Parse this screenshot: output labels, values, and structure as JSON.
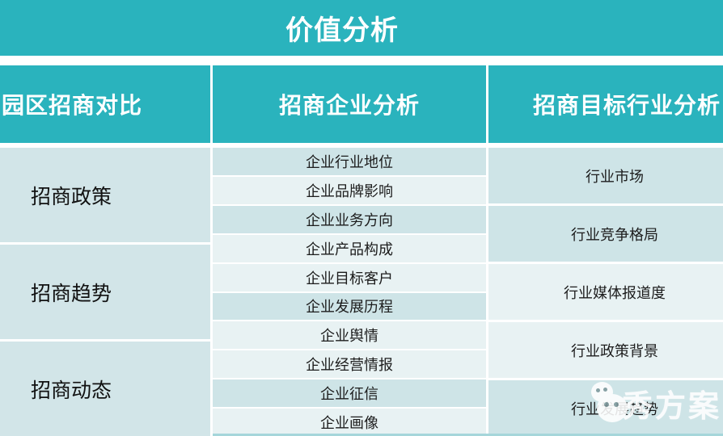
{
  "title": "价值分析",
  "colors": {
    "teal": "#2ab3bd",
    "tint_dark": "#cee4e7",
    "tint_light": "#e8f2f3",
    "tint_left": "#d2e5e8",
    "header_text": "#ffffff",
    "cell_text": "#1c1c1c"
  },
  "columns": [
    {
      "header": "园区招商对比",
      "items": [
        {
          "label": "招商政策"
        },
        {
          "label": "招商趋势"
        },
        {
          "label": "招商动态"
        }
      ]
    },
    {
      "header": "招商企业分析",
      "items": [
        {
          "label": "企业行业地位"
        },
        {
          "label": "企业品牌影响"
        },
        {
          "label": "企业业务方向"
        },
        {
          "label": "企业产品构成"
        },
        {
          "label": "企业目标客户"
        },
        {
          "label": "企业发展历程"
        },
        {
          "label": "企业舆情"
        },
        {
          "label": "企业经营情报"
        },
        {
          "label": "企业征信"
        },
        {
          "label": "企业画像"
        }
      ]
    },
    {
      "header": "招商目标行业分析",
      "items": [
        {
          "label": "行业市场"
        },
        {
          "label": "行业竞争格局"
        },
        {
          "label": "行业媒体报道度"
        },
        {
          "label": "行业政策背景"
        },
        {
          "label": "行业发展趋势"
        }
      ]
    }
  ],
  "watermark": {
    "text": "秀方案",
    "logo": "wechat-bubbles-icon"
  }
}
